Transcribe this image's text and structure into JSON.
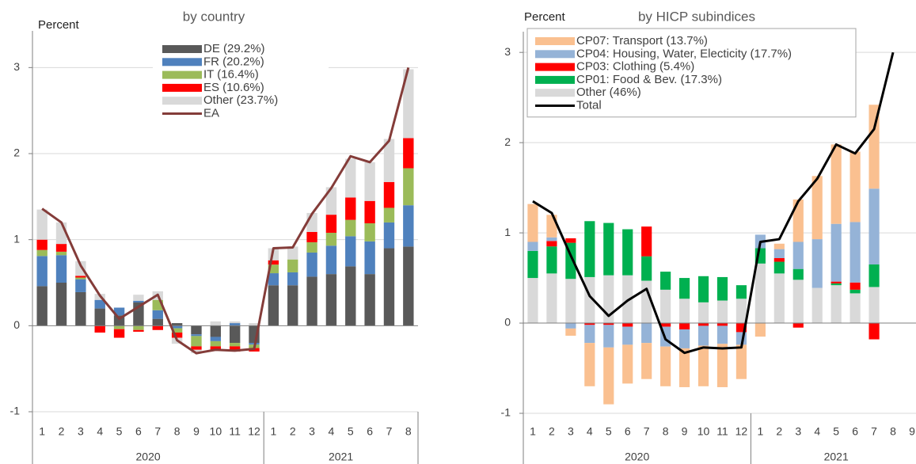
{
  "chart_data": [
    {
      "type": "bar",
      "stacked": true,
      "title": "by country",
      "ylabel": "Percent",
      "categories": [
        "1",
        "2",
        "3",
        "4",
        "5",
        "6",
        "7",
        "8",
        "9",
        "10",
        "11",
        "12",
        "1",
        "2",
        "3",
        "4",
        "5",
        "6",
        "7",
        "8"
      ],
      "x_groups": [
        "2020",
        "2021"
      ],
      "ylim": [
        -1,
        3.5
      ],
      "yticks": [
        -1,
        0,
        1,
        2,
        3
      ],
      "grid": true,
      "legend": "upper center",
      "stack_reverse": false,
      "series": [
        {
          "name": "DE (29.2%)",
          "color": "#595959",
          "values": [
            0.46,
            0.5,
            0.39,
            0.2,
            0.12,
            0.27,
            0.08,
            0.03,
            -0.1,
            -0.13,
            -0.2,
            -0.2,
            0.47,
            0.47,
            0.57,
            0.6,
            0.69,
            0.6,
            0.9,
            0.92
          ]
        },
        {
          "name": "FR (20.2%)",
          "color": "#4f81bd",
          "values": [
            0.35,
            0.32,
            0.15,
            0.1,
            0.09,
            0.02,
            0.1,
            -0.03,
            -0.02,
            -0.05,
            0.03,
            -0.02,
            0.14,
            0.15,
            0.28,
            0.33,
            0.35,
            0.38,
            0.3,
            0.48
          ]
        },
        {
          "name": "IT (16.4%)",
          "color": "#9bbb59",
          "values": [
            0.07,
            0.04,
            0.02,
            0.0,
            -0.04,
            -0.05,
            0.12,
            -0.05,
            -0.12,
            -0.06,
            -0.04,
            -0.04,
            0.1,
            0.15,
            0.12,
            0.15,
            0.19,
            0.21,
            0.17,
            0.43
          ]
        },
        {
          "name": "ES (10.6%)",
          "color": "#ff0000",
          "values": [
            0.12,
            0.09,
            0.02,
            -0.08,
            -0.1,
            -0.02,
            -0.05,
            -0.06,
            -0.04,
            -0.05,
            -0.06,
            -0.04,
            0.05,
            0.0,
            0.12,
            0.21,
            0.26,
            0.26,
            0.3,
            0.35
          ]
        },
        {
          "name": "Other (23.7%)",
          "color": "#d9d9d9",
          "values": [
            0.35,
            0.25,
            0.17,
            0.07,
            0.0,
            0.07,
            0.1,
            -0.07,
            -0.04,
            0.05,
            0.02,
            0.03,
            0.14,
            0.15,
            0.22,
            0.32,
            0.45,
            0.45,
            0.5,
            0.8
          ]
        },
        {
          "name": "EA",
          "type": "line",
          "color": "#843c39",
          "values": [
            1.36,
            1.2,
            0.7,
            0.35,
            0.08,
            0.22,
            0.36,
            -0.17,
            -0.32,
            -0.28,
            -0.29,
            -0.27,
            0.9,
            0.91,
            1.3,
            1.6,
            1.97,
            1.9,
            2.15,
            3.0
          ]
        }
      ]
    },
    {
      "type": "bar",
      "stacked": true,
      "title": "by HICP subindices",
      "ylabel": "Percent",
      "categories": [
        "1",
        "2",
        "3",
        "4",
        "5",
        "6",
        "7",
        "8",
        "9",
        "10",
        "11",
        "12",
        "1",
        "2",
        "3",
        "4",
        "5",
        "6",
        "7",
        "8",
        "9"
      ],
      "x_groups": [
        "2020",
        "2021"
      ],
      "ylim": [
        -1,
        3.3
      ],
      "yticks": [
        -1,
        0,
        1,
        2,
        3
      ],
      "grid": true,
      "legend": "upper left",
      "stack_reverse": true,
      "series": [
        {
          "name": "CP07: Transport (13.7%)",
          "color": "#fac090",
          "values": [
            0.42,
            0.25,
            -0.08,
            -0.48,
            -0.63,
            -0.43,
            -0.4,
            -0.44,
            -0.43,
            -0.45,
            -0.48,
            -0.38,
            -0.15,
            0.06,
            0.47,
            0.7,
            0.88,
            0.78,
            0.93,
            null,
            null
          ]
        },
        {
          "name": "CP04: Housing, Water, Electicity (17.7%)",
          "color": "#95b3d7",
          "values": [
            0.1,
            0.04,
            -0.06,
            -0.2,
            -0.25,
            -0.2,
            -0.22,
            -0.22,
            -0.21,
            -0.22,
            -0.2,
            -0.14,
            0.15,
            0.1,
            0.3,
            0.54,
            0.64,
            0.67,
            0.84,
            null,
            null
          ]
        },
        {
          "name": "CP03: Clothing (5.4%)",
          "color": "#ff0000",
          "values": [
            0.0,
            0.06,
            0.05,
            -0.02,
            -0.02,
            -0.04,
            0.33,
            -0.04,
            -0.07,
            -0.03,
            -0.03,
            -0.1,
            0.0,
            0.04,
            -0.05,
            0.0,
            0.02,
            0.08,
            -0.18,
            null,
            null
          ]
        },
        {
          "name": "CP01: Food & Bev. (17.3%)",
          "color": "#00b050",
          "values": [
            0.3,
            0.3,
            0.4,
            0.62,
            0.58,
            0.51,
            0.27,
            0.2,
            0.23,
            0.29,
            0.26,
            0.15,
            0.17,
            0.13,
            0.12,
            0.0,
            0.02,
            0.04,
            0.25,
            null,
            null
          ]
        },
        {
          "name": "Other (46%)",
          "color": "#d9d9d9",
          "values": [
            0.5,
            0.55,
            0.49,
            0.51,
            0.53,
            0.53,
            0.47,
            0.37,
            0.27,
            0.23,
            0.25,
            0.27,
            0.66,
            0.55,
            0.48,
            0.39,
            0.42,
            0.33,
            0.4,
            null,
            null
          ]
        },
        {
          "name": "Total",
          "type": "line",
          "color": "#000000",
          "values": [
            1.35,
            1.22,
            0.75,
            0.3,
            0.08,
            0.25,
            0.38,
            -0.18,
            -0.33,
            -0.27,
            -0.28,
            -0.27,
            0.9,
            0.93,
            1.35,
            1.6,
            1.98,
            1.88,
            2.15,
            3.0,
            null
          ]
        }
      ]
    }
  ]
}
